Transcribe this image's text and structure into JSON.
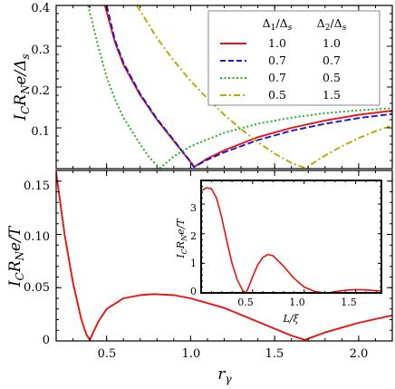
{
  "chart_data": [
    {
      "type": "line",
      "ylabel": "I_C R_N e/Δ_s",
      "xlim": [
        0.2,
        2.2
      ],
      "ylim": [
        0,
        0.4
      ],
      "x_ticks": [
        "0.5",
        "1.0",
        "1.5",
        "2.0"
      ],
      "y_ticks": [
        "0.1",
        "0.2",
        "0.3",
        "0.4"
      ],
      "legend": {
        "headers": [
          "Δ1/Δs",
          "Δ2/Δs"
        ],
        "placement": "top-right",
        "rows": [
          {
            "d1": "1.0",
            "d2": "1.0"
          },
          {
            "d1": "0.7",
            "d2": "0.7"
          },
          {
            "d1": "0.7",
            "d2": "0.5"
          },
          {
            "d1": "0.5",
            "d2": "1.5"
          }
        ]
      },
      "series": [
        {
          "color": "#ee1111",
          "dash": "solid",
          "x": [
            0.49,
            0.55,
            0.6,
            0.7,
            0.8,
            0.9,
            0.95,
            1.0,
            1.02,
            1.1,
            1.2,
            1.4,
            1.6,
            1.8,
            2.0,
            2.2
          ],
          "y": [
            0.4,
            0.31,
            0.255,
            0.18,
            0.12,
            0.068,
            0.042,
            0.016,
            0.004,
            0.025,
            0.045,
            0.077,
            0.1,
            0.118,
            0.132,
            0.142
          ]
        },
        {
          "color": "#1a1acc",
          "dash": "dashed",
          "x": [
            0.5,
            0.55,
            0.6,
            0.7,
            0.8,
            0.9,
            0.95,
            1.0,
            1.02,
            1.1,
            1.2,
            1.4,
            1.6,
            1.8,
            2.0,
            2.2
          ],
          "y": [
            0.4,
            0.315,
            0.26,
            0.183,
            0.122,
            0.07,
            0.043,
            0.017,
            0.004,
            0.022,
            0.04,
            0.07,
            0.093,
            0.11,
            0.124,
            0.134
          ]
        },
        {
          "color": "#22aa22",
          "dash": "dotted",
          "x": [
            0.39,
            0.45,
            0.5,
            0.55,
            0.6,
            0.7,
            0.75,
            0.8,
            0.82,
            0.9,
            1.0,
            1.2,
            1.4,
            1.6,
            1.8,
            2.0,
            2.2
          ],
          "y": [
            0.4,
            0.3,
            0.225,
            0.17,
            0.125,
            0.06,
            0.03,
            0.008,
            0.002,
            0.03,
            0.055,
            0.088,
            0.11,
            0.125,
            0.136,
            0.143,
            0.148
          ]
        },
        {
          "color": "#b8a800",
          "dash": "dashdot",
          "x": [
            0.68,
            0.8,
            0.9,
            1.0,
            1.1,
            1.2,
            1.3,
            1.4,
            1.5,
            1.6,
            1.68,
            1.7,
            1.8,
            1.9,
            2.0,
            2.1,
            2.2
          ],
          "y": [
            0.4,
            0.32,
            0.265,
            0.215,
            0.172,
            0.132,
            0.097,
            0.065,
            0.037,
            0.014,
            0.002,
            0.006,
            0.032,
            0.055,
            0.075,
            0.092,
            0.106
          ]
        }
      ]
    },
    {
      "type": "line",
      "xlabel": "r_γ",
      "ylabel": "I_C R_N e/T",
      "xlim": [
        0.2,
        2.2
      ],
      "ylim": [
        0,
        0.16
      ],
      "x_ticks": [
        "0.5",
        "1.0",
        "1.5",
        "2.0"
      ],
      "y_ticks": [
        "0",
        "0.05",
        "0.10",
        "0.15"
      ],
      "series": [
        {
          "color": "#ee1111",
          "dash": "solid",
          "x": [
            0.2,
            0.25,
            0.3,
            0.35,
            0.38,
            0.4,
            0.45,
            0.5,
            0.6,
            0.7,
            0.78,
            0.9,
            1.0,
            1.2,
            1.4,
            1.6,
            1.68,
            1.8,
            2.0,
            2.2
          ],
          "y": [
            0.158,
            0.1,
            0.055,
            0.02,
            0.006,
            0.001,
            0.018,
            0.03,
            0.04,
            0.043,
            0.044,
            0.043,
            0.04,
            0.031,
            0.018,
            0.005,
            0.001,
            0.008,
            0.017,
            0.024
          ]
        }
      ]
    },
    {
      "type": "line",
      "inset": true,
      "xlabel": "L/ξ",
      "ylabel": "I_C R_N e/T",
      "xlim": [
        0,
        1.75
      ],
      "ylim": [
        0,
        3.8
      ],
      "x_ticks": [
        "0.5",
        "1.0",
        "1.5"
      ],
      "y_ticks": [
        "0",
        "1",
        "2",
        "3"
      ],
      "series": [
        {
          "color": "#ee1111",
          "dash": "solid",
          "x": [
            0,
            0.05,
            0.1,
            0.15,
            0.2,
            0.25,
            0.3,
            0.35,
            0.4,
            0.43,
            0.45,
            0.5,
            0.55,
            0.6,
            0.65,
            0.7,
            0.8,
            0.9,
            1.0,
            1.1,
            1.2,
            1.25,
            1.3,
            1.4,
            1.5,
            1.6,
            1.75
          ],
          "y": [
            3.45,
            3.55,
            3.52,
            3.2,
            2.55,
            1.75,
            1.0,
            0.45,
            0.1,
            0.0,
            0.1,
            0.55,
            0.95,
            1.2,
            1.3,
            1.25,
            0.9,
            0.5,
            0.2,
            0.05,
            0.0,
            0.01,
            0.04,
            0.09,
            0.11,
            0.1,
            0.06
          ]
        }
      ]
    }
  ]
}
